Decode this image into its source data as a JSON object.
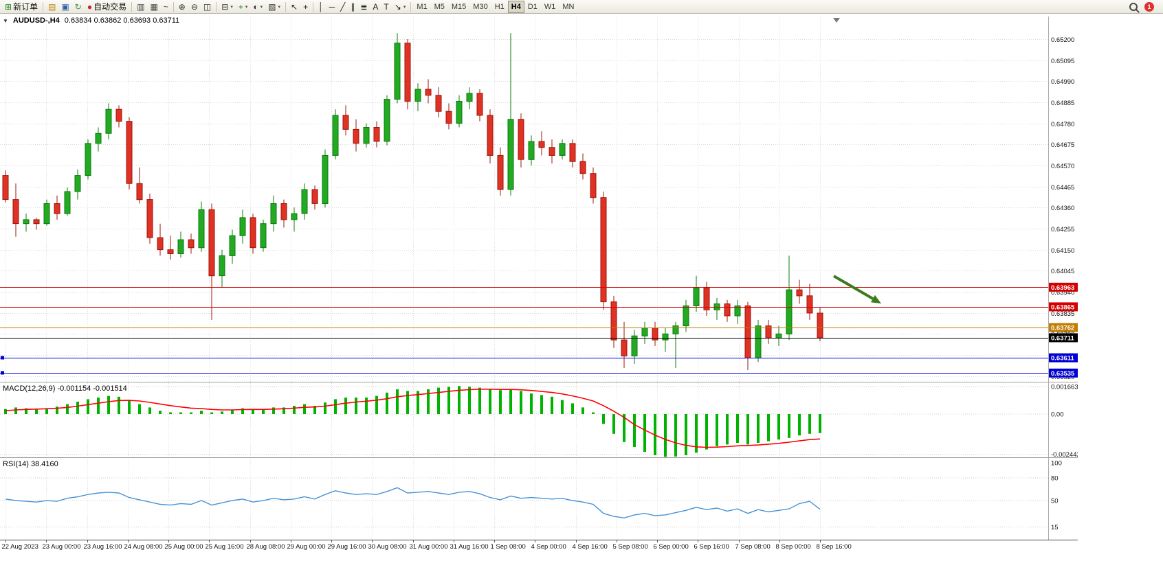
{
  "toolbar": {
    "notification_badge": "1",
    "timeframes": [
      "M1",
      "M5",
      "M15",
      "M30",
      "H1",
      "H4",
      "D1",
      "W1",
      "MN"
    ],
    "active_timeframe": "H4",
    "buttons": [
      {
        "name": "new-order",
        "glyph": "⊞",
        "color": "#1a7f1a",
        "label": "新订单"
      },
      {
        "sep": true
      },
      {
        "name": "market-watch",
        "glyph": "▤",
        "color": "#b8860b"
      },
      {
        "name": "profile",
        "glyph": "▣",
        "color": "#2f5fa8"
      },
      {
        "name": "refresh",
        "glyph": "↻",
        "color": "#4a8f4a"
      },
      {
        "name": "autotrading",
        "glyph": "●",
        "color": "#cc2222",
        "label": "自动交易"
      },
      {
        "sep": true
      },
      {
        "name": "bar-chart",
        "glyph": "▥",
        "color": "#444444"
      },
      {
        "name": "candlestick-chart",
        "glyph": "▦",
        "color": "#444444"
      },
      {
        "name": "line-chart",
        "glyph": "~",
        "color": "#444444"
      },
      {
        "sep": true
      },
      {
        "name": "zoom-in",
        "glyph": "⊕",
        "color": "#333333"
      },
      {
        "name": "zoom-out",
        "glyph": "⊖",
        "color": "#333333"
      },
      {
        "name": "tile-windows",
        "glyph": "◫",
        "color": "#333333"
      },
      {
        "sep": true
      },
      {
        "name": "new-chart",
        "glyph": "⊟",
        "color": "#333333",
        "dropdown": true
      },
      {
        "name": "indicators",
        "glyph": "+",
        "color": "#1a7f1a",
        "dropdown": true
      },
      {
        "name": "periods",
        "glyph": "◐",
        "color": "#333333",
        "dropdown": true
      },
      {
        "name": "templates",
        "glyph": "▧",
        "color": "#333333",
        "dropdown": true
      },
      {
        "sep": true
      },
      {
        "name": "cursor",
        "glyph": "↖",
        "color": "#222222"
      },
      {
        "name": "crosshair",
        "glyph": "+",
        "color": "#222222"
      },
      {
        "sep": true
      },
      {
        "name": "vertical-line",
        "glyph": "│",
        "color": "#222222"
      },
      {
        "name": "horizontal-line",
        "glyph": "─",
        "color": "#222222"
      },
      {
        "name": "trendline",
        "glyph": "╱",
        "color": "#222222"
      },
      {
        "name": "equidistant-channel",
        "glyph": "∥",
        "color": "#222222"
      },
      {
        "name": "fibonacci",
        "glyph": "≣",
        "color": "#222222"
      },
      {
        "name": "text",
        "glyph": "A",
        "color": "#222222"
      },
      {
        "name": "text-label",
        "glyph": "T",
        "color": "#222222"
      },
      {
        "name": "arrows",
        "glyph": "↘",
        "color": "#222222",
        "dropdown": true
      },
      {
        "sep": true
      }
    ]
  },
  "chart_header": {
    "symbol": "AUDUSD-,H4",
    "ohlc": "0.63834 0.63862 0.63693 0.63711"
  },
  "price_scale": {
    "labels": [
      "0.65200",
      "0.65095",
      "0.64990",
      "0.64885",
      "0.64780",
      "0.64675",
      "0.64570",
      "0.64465",
      "0.64360",
      "0.64255",
      "0.64150",
      "0.64045",
      "0.63940",
      "0.63835",
      "0.63730",
      "0.63625",
      "0.63520"
    ]
  },
  "levels": [
    {
      "price": 0.63963,
      "label": "0.63963",
      "color": "#d40000"
    },
    {
      "price": 0.63865,
      "label": "0.63865",
      "color": "#d40000"
    },
    {
      "price": 0.63762,
      "label": "0.63762",
      "color": "#c07d00"
    },
    {
      "price": 0.63711,
      "label": "0.63711",
      "color": "#000000"
    },
    {
      "price": 0.63611,
      "label": "0.63611",
      "color": "#0000d4",
      "handles": true
    },
    {
      "price": 0.63535,
      "label": "0.63535",
      "color": "#0000d4",
      "handles": true
    }
  ],
  "macd_panel": {
    "label": "MACD(12,26,9) -0.001154 -0.001514",
    "scale_labels": [
      "0.0016635",
      "0.00",
      "-0.0024425"
    ],
    "scale_values": [
      0.0016635,
      0,
      -0.0024425
    ]
  },
  "rsi_panel": {
    "label": "RSI(14) 38.4160",
    "scale_labels": [
      "100",
      "80",
      "50",
      "15"
    ],
    "scale_values": [
      100,
      80,
      50,
      15
    ]
  },
  "time_axis": [
    "22 Aug 2023",
    "23 Aug 00:00",
    "23 Aug 16:00",
    "24 Aug 08:00",
    "25 Aug 00:00",
    "25 Aug 16:00",
    "28 Aug 08:00",
    "29 Aug 00:00",
    "29 Aug 16:00",
    "30 Aug 08:00",
    "31 Aug 00:00",
    "31 Aug 16:00",
    "1 Sep 08:00",
    "4 Sep 00:00",
    "4 Sep 16:00",
    "5 Sep 08:00",
    "6 Sep 00:00",
    "6 Sep 16:00",
    "7 Sep 08:00",
    "8 Sep 00:00",
    "8 Sep 16:00"
  ],
  "annotations": {
    "arrow": {
      "from": [
        1213,
        382
      ],
      "to": [
        1282,
        422
      ],
      "color": "#3e7a1e"
    }
  },
  "chart_data": [
    {
      "type": "candlestick",
      "name": "AUDUSD- H4 price",
      "ylim": [
        0.6349,
        0.653
      ],
      "up_color": "#22aa22",
      "down_color": "#e03224",
      "candles": [
        [
          0.6452,
          0.64545,
          0.64385,
          0.644
        ],
        [
          0.644,
          0.6448,
          0.64215,
          0.6428
        ],
        [
          0.6428,
          0.6433,
          0.6424,
          0.643
        ],
        [
          0.643,
          0.6431,
          0.6425,
          0.6428
        ],
        [
          0.6428,
          0.644,
          0.6427,
          0.6438
        ],
        [
          0.6438,
          0.6442,
          0.643,
          0.6433
        ],
        [
          0.6433,
          0.6446,
          0.6432,
          0.6444
        ],
        [
          0.6444,
          0.6455,
          0.644,
          0.6452
        ],
        [
          0.6452,
          0.647,
          0.645,
          0.6468
        ],
        [
          0.6468,
          0.6476,
          0.6464,
          0.6473
        ],
        [
          0.6473,
          0.6488,
          0.647,
          0.6485
        ],
        [
          0.6485,
          0.6487,
          0.6476,
          0.6479
        ],
        [
          0.6479,
          0.6481,
          0.6445,
          0.6448
        ],
        [
          0.6448,
          0.6456,
          0.6438,
          0.644
        ],
        [
          0.644,
          0.6443,
          0.6418,
          0.6421
        ],
        [
          0.6421,
          0.6428,
          0.6412,
          0.6415
        ],
        [
          0.6415,
          0.6422,
          0.641,
          0.6413
        ],
        [
          0.6413,
          0.6424,
          0.6411,
          0.642
        ],
        [
          0.642,
          0.6423,
          0.6413,
          0.6416
        ],
        [
          0.6416,
          0.6439,
          0.6414,
          0.6435
        ],
        [
          0.6435,
          0.6438,
          0.638,
          0.6402
        ],
        [
          0.6402,
          0.6415,
          0.6396,
          0.6412
        ],
        [
          0.6412,
          0.6425,
          0.6408,
          0.6422
        ],
        [
          0.6422,
          0.6435,
          0.6418,
          0.6431
        ],
        [
          0.6431,
          0.6433,
          0.6413,
          0.6416
        ],
        [
          0.6416,
          0.643,
          0.6414,
          0.6428
        ],
        [
          0.6428,
          0.6442,
          0.6424,
          0.6438
        ],
        [
          0.6438,
          0.644,
          0.6426,
          0.643
        ],
        [
          0.643,
          0.6436,
          0.6424,
          0.6433
        ],
        [
          0.6433,
          0.6448,
          0.643,
          0.6445
        ],
        [
          0.6445,
          0.6447,
          0.6435,
          0.6438
        ],
        [
          0.6438,
          0.6465,
          0.6436,
          0.6462
        ],
        [
          0.6462,
          0.6485,
          0.646,
          0.6482
        ],
        [
          0.6482,
          0.6487,
          0.6472,
          0.6475
        ],
        [
          0.6475,
          0.648,
          0.6464,
          0.6468
        ],
        [
          0.6468,
          0.6478,
          0.6466,
          0.6476
        ],
        [
          0.6476,
          0.6479,
          0.6466,
          0.6469
        ],
        [
          0.6469,
          0.6492,
          0.6467,
          0.649
        ],
        [
          0.649,
          0.6523,
          0.6488,
          0.6518
        ],
        [
          0.6518,
          0.652,
          0.6485,
          0.6489
        ],
        [
          0.6489,
          0.6498,
          0.6484,
          0.6495
        ],
        [
          0.6495,
          0.65,
          0.6488,
          0.6492
        ],
        [
          0.6492,
          0.6496,
          0.6481,
          0.6484
        ],
        [
          0.6484,
          0.6488,
          0.6475,
          0.6478
        ],
        [
          0.6478,
          0.6492,
          0.6476,
          0.6489
        ],
        [
          0.6489,
          0.6496,
          0.6485,
          0.6493
        ],
        [
          0.6493,
          0.6495,
          0.6479,
          0.6482
        ],
        [
          0.6482,
          0.6485,
          0.6458,
          0.6462
        ],
        [
          0.6462,
          0.6466,
          0.6442,
          0.6445
        ],
        [
          0.6445,
          0.6523,
          0.6442,
          0.648
        ],
        [
          0.648,
          0.6483,
          0.6456,
          0.646
        ],
        [
          0.646,
          0.6472,
          0.6457,
          0.6469
        ],
        [
          0.6469,
          0.6474,
          0.6462,
          0.6466
        ],
        [
          0.6466,
          0.647,
          0.6458,
          0.6462
        ],
        [
          0.6462,
          0.647,
          0.646,
          0.6468
        ],
        [
          0.6468,
          0.647,
          0.6456,
          0.6459
        ],
        [
          0.6459,
          0.6463,
          0.645,
          0.6453
        ],
        [
          0.6453,
          0.6456,
          0.6438,
          0.6441
        ],
        [
          0.6441,
          0.6444,
          0.6385,
          0.6389
        ],
        [
          0.6389,
          0.6392,
          0.6366,
          0.637
        ],
        [
          0.637,
          0.6379,
          0.6356,
          0.6362
        ],
        [
          0.6362,
          0.6375,
          0.6358,
          0.6372
        ],
        [
          0.6372,
          0.6379,
          0.6368,
          0.6376
        ],
        [
          0.6376,
          0.6379,
          0.6367,
          0.637
        ],
        [
          0.637,
          0.6376,
          0.6364,
          0.6373
        ],
        [
          0.6373,
          0.6379,
          0.6356,
          0.6377
        ],
        [
          0.6377,
          0.639,
          0.6374,
          0.6387
        ],
        [
          0.6387,
          0.6402,
          0.6384,
          0.6396
        ],
        [
          0.6396,
          0.6399,
          0.6382,
          0.6385
        ],
        [
          0.6385,
          0.6391,
          0.638,
          0.6388
        ],
        [
          0.6388,
          0.639,
          0.6379,
          0.6382
        ],
        [
          0.6382,
          0.639,
          0.6378,
          0.6387
        ],
        [
          0.6387,
          0.6389,
          0.6355,
          0.6361
        ],
        [
          0.6361,
          0.638,
          0.6359,
          0.6377
        ],
        [
          0.6377,
          0.638,
          0.6368,
          0.6371
        ],
        [
          0.6371,
          0.6377,
          0.6367,
          0.6373
        ],
        [
          0.6373,
          0.6412,
          0.637,
          0.6395
        ],
        [
          0.6395,
          0.64,
          0.6388,
          0.6392
        ],
        [
          0.6392,
          0.6398,
          0.638,
          0.63834
        ],
        [
          0.63834,
          0.63862,
          0.63693,
          0.63711
        ]
      ]
    },
    {
      "type": "bar",
      "name": "MACD(12,26,9)",
      "color": "#00b300",
      "signal_color": "#ff0000",
      "ylim": [
        -0.0026,
        0.0017
      ],
      "values": [
        0.0003,
        0.0004,
        0.00035,
        0.0003,
        0.00035,
        0.00045,
        0.0006,
        0.00075,
        0.0009,
        0.001,
        0.0011,
        0.00105,
        0.00085,
        0.0006,
        0.0004,
        0.0002,
        0.0001,
        0.0001,
        0.0001,
        0.0002,
        0.0001,
        0.00015,
        0.00025,
        0.00035,
        0.0003,
        0.0003,
        0.0004,
        0.0004,
        0.0005,
        0.0006,
        0.0005,
        0.0007,
        0.0009,
        0.001,
        0.001,
        0.001,
        0.0011,
        0.0013,
        0.0015,
        0.0014,
        0.0014,
        0.0015,
        0.0016,
        0.00165,
        0.0017,
        0.00165,
        0.0016,
        0.0015,
        0.00145,
        0.0015,
        0.0014,
        0.00125,
        0.00115,
        0.00105,
        0.00085,
        0.00065,
        0.0004,
        0.0001,
        -0.0006,
        -0.0012,
        -0.0017,
        -0.002,
        -0.0023,
        -0.0025,
        -0.0026,
        -0.00258,
        -0.0025,
        -0.00235,
        -0.00215,
        -0.00195,
        -0.00185,
        -0.00175,
        -0.00185,
        -0.00175,
        -0.00165,
        -0.00155,
        -0.00145,
        -0.0013,
        -0.0012,
        -0.001154
      ],
      "signal": [
        0.0002,
        0.00025,
        0.00028,
        0.0003,
        0.00032,
        0.00035,
        0.0004,
        0.00048,
        0.00057,
        0.00066,
        0.00075,
        0.00082,
        0.00083,
        0.00079,
        0.00071,
        0.00061,
        0.00051,
        0.00043,
        0.00036,
        0.00033,
        0.00028,
        0.00025,
        0.00025,
        0.00027,
        0.00028,
        0.00028,
        0.0003,
        0.00032,
        0.00036,
        0.00041,
        0.00043,
        0.00048,
        0.00057,
        0.00066,
        0.00073,
        0.00078,
        0.00084,
        0.00093,
        0.00105,
        0.00112,
        0.00118,
        0.00124,
        0.00131,
        0.00138,
        0.00144,
        0.00148,
        0.00151,
        0.00151,
        0.00149,
        0.00149,
        0.00147,
        0.00143,
        0.00137,
        0.00131,
        0.00122,
        0.0011,
        0.00096,
        0.00079,
        0.00051,
        0.00017,
        -0.0002,
        -0.00064,
        -0.00097,
        -0.00128,
        -0.00154,
        -0.00175,
        -0.0019,
        -0.00199,
        -0.00202,
        -0.00201,
        -0.00198,
        -0.00193,
        -0.00191,
        -0.00188,
        -0.00183,
        -0.00178,
        -0.00171,
        -0.00163,
        -0.00155,
        -0.001514
      ]
    },
    {
      "type": "line",
      "name": "RSI(14)",
      "color": "#4593d8",
      "ylim": [
        0,
        100
      ],
      "last_value": 38.416,
      "values": [
        52,
        50,
        49,
        48,
        50,
        49,
        53,
        55,
        58,
        60,
        61,
        60,
        54,
        51,
        48,
        45,
        44,
        46,
        45,
        50,
        44,
        47,
        50,
        52,
        48,
        50,
        53,
        51,
        52,
        55,
        52,
        58,
        63,
        60,
        58,
        59,
        58,
        62,
        67,
        60,
        61,
        62,
        60,
        58,
        61,
        62,
        59,
        54,
        51,
        56,
        53,
        54,
        53,
        52,
        53,
        50,
        48,
        45,
        33,
        29,
        27,
        31,
        33,
        30,
        31,
        34,
        37,
        41,
        38,
        40,
        36,
        39,
        33,
        38,
        35,
        37,
        39,
        46,
        49,
        38.416
      ]
    }
  ]
}
